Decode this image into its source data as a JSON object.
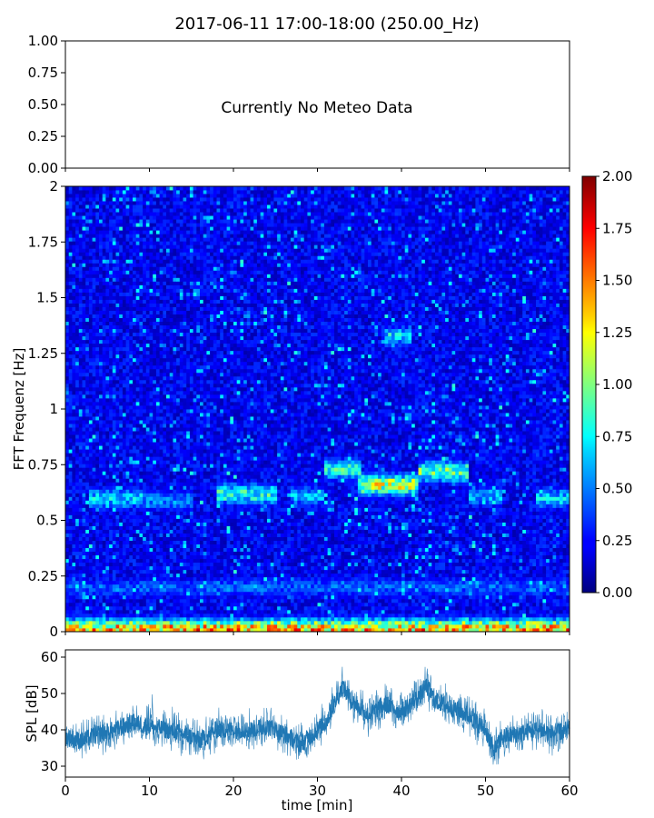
{
  "chart_data": [
    {
      "type": "table",
      "title": "2017-06-11 17:00-18:00 (250.00_Hz)",
      "message": "Currently No Meteo Data",
      "ylim": [
        0,
        1
      ],
      "yticks": [
        "0.00",
        "0.25",
        "0.50",
        "0.75",
        "1.00"
      ],
      "grid": false
    },
    {
      "type": "heatmap",
      "ylabel": "FFT Frequenz [Hz]",
      "xlim": [
        0,
        60
      ],
      "ylim": [
        0,
        2
      ],
      "yticks": [
        "0",
        "0.25",
        "0.5",
        "0.75",
        "1",
        "1.25",
        "1.5",
        "1.75",
        "2"
      ],
      "colormap": "jet",
      "colorbar": {
        "range": [
          0,
          2
        ],
        "ticks": [
          "0.00",
          "0.25",
          "0.50",
          "0.75",
          "1.00",
          "1.25",
          "1.50",
          "1.75",
          "2.00"
        ]
      },
      "background_level": 0.25,
      "features": [
        {
          "t_start": 3,
          "t_end": 9,
          "freq": 0.6,
          "level": 0.75
        },
        {
          "t_start": 9,
          "t_end": 15,
          "freq": 0.59,
          "level": 0.6
        },
        {
          "t_start": 18,
          "t_end": 25,
          "freq": 0.62,
          "level": 0.95
        },
        {
          "t_start": 27,
          "t_end": 31,
          "freq": 0.61,
          "level": 0.7
        },
        {
          "t_start": 31,
          "t_end": 35,
          "freq": 0.73,
          "level": 0.95
        },
        {
          "t_start": 35,
          "t_end": 42,
          "freq": 0.66,
          "level": 1.3
        },
        {
          "t_start": 42,
          "t_end": 48,
          "freq": 0.72,
          "level": 1.1
        },
        {
          "t_start": 48,
          "t_end": 52,
          "freq": 0.61,
          "level": 0.7
        },
        {
          "t_start": 56,
          "t_end": 60,
          "freq": 0.6,
          "level": 0.75
        },
        {
          "t_start": 0,
          "t_end": 60,
          "freq": 0.01,
          "level": 1.6
        },
        {
          "t_start": 0,
          "t_end": 60,
          "freq": 0.2,
          "level": 0.5
        },
        {
          "t_start": 38,
          "t_end": 41,
          "freq": 1.33,
          "level": 0.8
        }
      ]
    },
    {
      "type": "line",
      "xlabel": "time [min]",
      "ylabel": "SPL [dB]",
      "xlim": [
        0,
        60
      ],
      "ylim": [
        27,
        62
      ],
      "xticks": [
        "0",
        "10",
        "20",
        "30",
        "40",
        "50",
        "60"
      ],
      "yticks": [
        "30",
        "40",
        "50",
        "60"
      ],
      "color": "#1f77b4",
      "grid": false,
      "x": [
        0,
        2,
        4,
        6,
        8,
        10,
        12,
        14,
        16,
        18,
        20,
        22,
        24,
        26,
        28,
        30,
        31,
        32,
        33,
        34,
        35,
        36,
        38,
        40,
        42,
        43,
        44,
        46,
        48,
        50,
        51,
        52,
        54,
        56,
        58,
        60
      ],
      "y": [
        38,
        37,
        39,
        40,
        42,
        41,
        40,
        39,
        37,
        40,
        40,
        40,
        41,
        39,
        36,
        40,
        42,
        47,
        52,
        48,
        46,
        44,
        47,
        45,
        49,
        52,
        48,
        46,
        44,
        40,
        34,
        38,
        39,
        40,
        39,
        40
      ]
    }
  ]
}
